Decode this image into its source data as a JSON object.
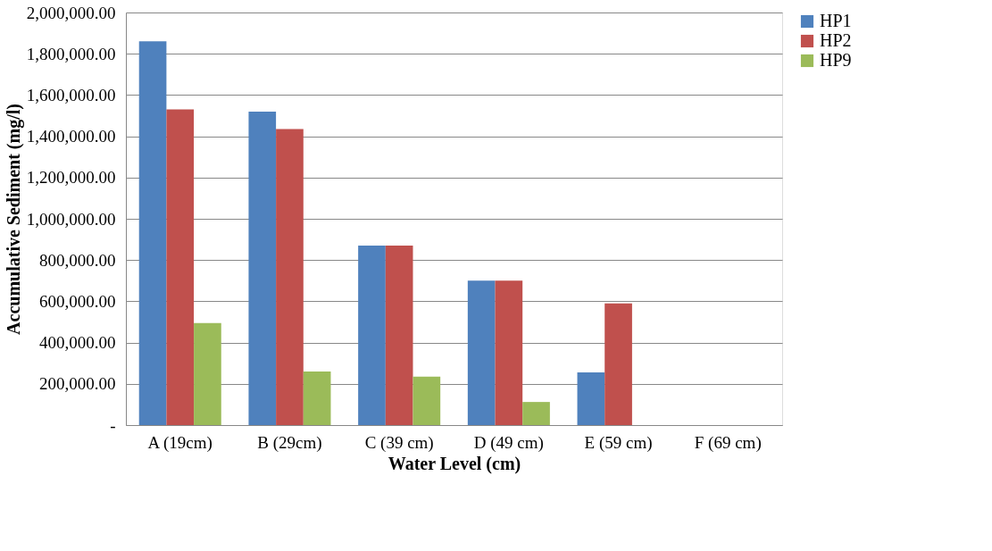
{
  "chart_data": {
    "type": "bar",
    "xlabel": "Water Level (cm)",
    "ylabel": "Accumulative Sediment (mg/l)",
    "categories": [
      "A (19cm)",
      "B (29cm)",
      "C (39 cm)",
      "D (49 cm)",
      "E (59 cm)",
      "F (69 cm)"
    ],
    "series": [
      {
        "name": "HP1",
        "color": "#4f81bd",
        "values": [
          1860000,
          1520000,
          870000,
          700000,
          255000,
          0
        ]
      },
      {
        "name": "HP2",
        "color": "#c0504d",
        "values": [
          1530000,
          1435000,
          870000,
          700000,
          590000,
          0
        ]
      },
      {
        "name": "HP9",
        "color": "#9bbb59",
        "values": [
          495000,
          260000,
          235000,
          112000,
          0,
          0
        ]
      }
    ],
    "ylim": [
      0,
      2000000
    ],
    "yticks": [
      {
        "value": 0,
        "label": "-"
      },
      {
        "value": 200000,
        "label": "200,000.00"
      },
      {
        "value": 400000,
        "label": "400,000.00"
      },
      {
        "value": 600000,
        "label": "600,000.00"
      },
      {
        "value": 800000,
        "label": "800,000.00"
      },
      {
        "value": 1000000,
        "label": "1,000,000.00"
      },
      {
        "value": 1200000,
        "label": "1,200,000.00"
      },
      {
        "value": 1400000,
        "label": "1,400,000.00"
      },
      {
        "value": 1600000,
        "label": "1,600,000.00"
      },
      {
        "value": 1800000,
        "label": "1,800,000.00"
      },
      {
        "value": 2000000,
        "label": "2,000,000.00"
      }
    ],
    "grid": "y",
    "legend": "right"
  }
}
